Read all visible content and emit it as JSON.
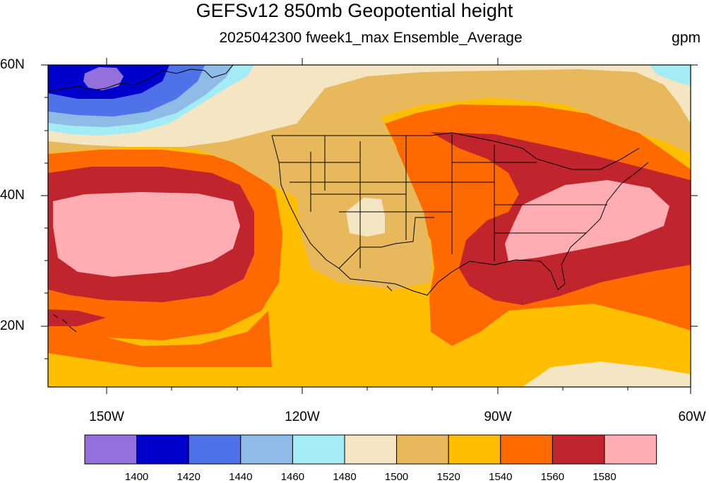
{
  "title": "GEFSv12 850mb Geopotential height",
  "subtitle": "2025042300 fweek1_max Ensemble_Average",
  "units": "gpm",
  "map": {
    "region": "North Pacific and contiguous United States",
    "projection": "cylindrical equidistant",
    "lon_range": [
      -160,
      -60
    ],
    "lat_range": [
      10,
      60
    ],
    "lat_labels": [
      "60N",
      "40N",
      "20N"
    ],
    "lon_labels": [
      "150W",
      "120W",
      "90W",
      "60W"
    ]
  },
  "colorbar": {
    "levels": [
      "1400",
      "1420",
      "1440",
      "1460",
      "1480",
      "1500",
      "1520",
      "1540",
      "1560",
      "1580"
    ],
    "colors": [
      "#9370db",
      "#0000cd",
      "#4f72e8",
      "#8fbce6",
      "#a3ebf5",
      "#f5e6c3",
      "#e8b85c",
      "#ffbf00",
      "#ff6a00",
      "#c0242c",
      "#ffadb3"
    ]
  },
  "features": {
    "low_center": "Gulf of Alaska, below 1400 gpm",
    "high_centers": [
      "Subtropical North Pacific, above 1580 gpm",
      "Southeastern United States, above 1580 gpm"
    ],
    "thermal_low": "Desert Southwest, 1480-1500 gpm"
  }
}
